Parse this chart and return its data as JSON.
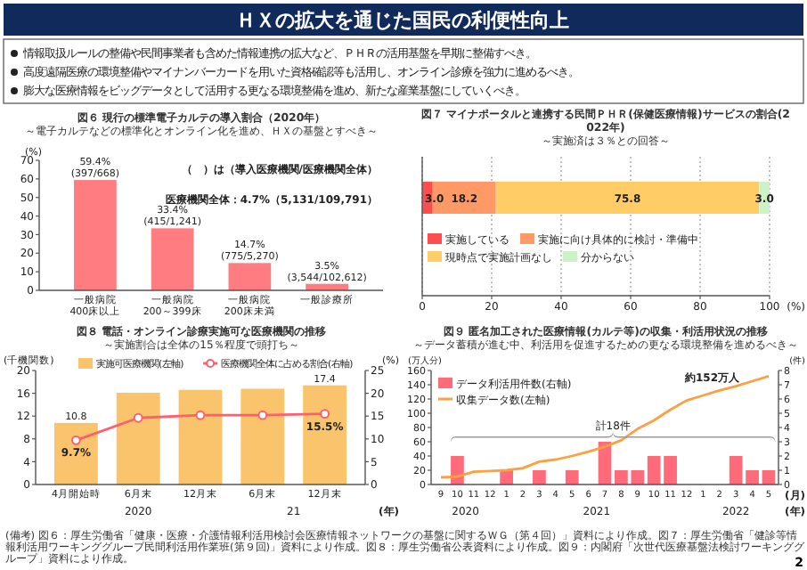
{
  "chart_data": [
    {
      "type": "other",
      "title": "ＨＸの拡大を通じた国民の利便性向上",
      "annotations": [
        "情報取扱ルールの整備や民間事業者も含めた情報連携の拡大など、ＰＨＲの活用基盤を早期に整備すべき。",
        "高度遠隔医療の環境整備やマイナンバーカードを用いた資格確認等も活用し、オンライン診療を強力に進めるべき。",
        "膨大な医療情報をビッグデータとして活用する更なる環境整備を進め、新たな産業基盤にしていくべき。",
        "(備考) 図６：厚生労働省「健康・医療・介護情報利活用検討会医療情報ネットワークの基盤に関するＷＧ（第４回）」資料により作成。図７：厚生労働省「健診等情報利活用ワーキンググループ民間利活用作業班(第９回)」資料により作成。図８：厚生労働省公表資料により作成。図９：内閣府「次世代医療基盤法検討ワーキンググループ」資料により作成。",
        "2"
      ]
    },
    {
      "type": "bar",
      "title": "図６ 現行の標準電子カルテの導入割合（2020年）",
      "subtitle": "～電子カルテなどの標準化とオンライン化を進め、ＨＸの基盤とすべき～",
      "ylabel": "(%)",
      "categories": [
        "一般病院 400床以上",
        "一般病院 200～399床",
        "一般病院 200床未満",
        "一般診療所"
      ],
      "ylim": [
        0,
        70
      ],
      "yticks": [
        0,
        10,
        20,
        30,
        40,
        50,
        60,
        70
      ],
      "annotations": [
        "（　）は（導入医療機関/医療機関全体）",
        "医療機関全体：4.7%（5,131/109,791）"
      ],
      "series": [
        {
          "color": "#ff7c80",
          "values": [
            59.4,
            33.4,
            14.7,
            3.5
          ],
          "value_labels": [
            "59.4%\n(397/668)",
            "33.4%\n(415/1,241)",
            "14.7%\n(775/5,270)",
            "3.5%\n(3,544/102,612)"
          ]
        }
      ]
    },
    {
      "type": "bar",
      "orientation": "horizontal",
      "stacked": true,
      "title": "図７ マイナポータルと連携する民間ＰＨＲ(保健医療情報)サービスの割合(2022年)",
      "subtitle": "～実施済は３％との回答～",
      "xlabel": "(%)",
      "categories": [
        null
      ],
      "xlim": [
        0,
        100
      ],
      "xticks": [
        0,
        20,
        40,
        60,
        80,
        100
      ],
      "grid": "x",
      "legend": "bottom",
      "series": [
        {
          "name": "実施している",
          "color": "#ff4d4d",
          "values": [
            3.0
          ],
          "value_labels": [
            "3.0"
          ]
        },
        {
          "name": "実施に向け具体的に検討・準備中",
          "color": "#ff9a66",
          "values": [
            18.2
          ],
          "value_labels": [
            "18.2"
          ]
        },
        {
          "name": "現時点で実施計画なし",
          "color": "#ffcc66",
          "values": [
            75.8
          ],
          "value_labels": [
            "75.8"
          ]
        },
        {
          "name": "分からない",
          "color": "#ccf2c8",
          "values": [
            3.0
          ],
          "value_labels": [
            "3.0"
          ]
        }
      ]
    },
    {
      "type": "bar",
      "title": "図８ 電話・オンライン診療実施可な医療機関の推移",
      "subtitle": "～実施割合は全体の15％程度で頭打ち～",
      "ylabel": "(千機関数)",
      "y2label": "(%)",
      "categories": [
        "4月開始時",
        "6月末",
        "12月末",
        "6月末",
        "12月末"
      ],
      "ylim": [
        0,
        20
      ],
      "yticks": [
        0,
        4,
        8,
        12,
        16,
        20
      ],
      "y2lim": [
        0,
        25
      ],
      "y2ticks": [
        0,
        5,
        10,
        15,
        20,
        25
      ],
      "legend": "top",
      "marker": "circle",
      "annotations": [
        "2020",
        "21",
        "(年)"
      ],
      "series": [
        {
          "name": "実施可医療機関(左軸)",
          "color": "#f9c46b",
          "values": [
            10.8,
            16.1,
            16.6,
            16.8,
            17.4
          ],
          "value_labels": [
            "10.8",
            null,
            null,
            null,
            "17.4"
          ]
        },
        {
          "name": "医療機関全体に占める割合(右軸)",
          "type": "line",
          "axis": "y2",
          "color": "#ff5f6d",
          "values": [
            9.7,
            14.6,
            15.2,
            15.2,
            15.5
          ],
          "value_labels": [
            "9.7%",
            null,
            null,
            null,
            "15.5%"
          ]
        }
      ]
    },
    {
      "type": "bar",
      "title": "図９ 匿名加工された医療情報(カルテ等)の収集・利活用状況の推移",
      "subtitle": "～データ蓄積が進む中、利活用を促進するための更なる環境整備を進めるべき～",
      "ylabel": "(万人分)",
      "y2label": "(件)",
      "categories": [
        "9",
        "10",
        "11",
        "12",
        "1",
        "2",
        "3",
        "4",
        "5",
        "6",
        "7",
        "8",
        "9",
        "10",
        "11",
        "12",
        "1",
        "2",
        "3",
        "4",
        "5"
      ],
      "ylim": [
        0,
        160
      ],
      "yticks": [
        0,
        20,
        40,
        60,
        80,
        100,
        120,
        140,
        160
      ],
      "y2lim": [
        0,
        8
      ],
      "y2ticks": [
        0,
        1,
        2,
        3,
        4,
        5,
        6,
        7,
        8
      ],
      "legend": "top left",
      "annotations": [
        "約152万人",
        "計18件",
        "2020",
        "2021",
        "2022",
        "(月)",
        "(年)"
      ],
      "series": [
        {
          "name": "データ利活用件数(右軸)",
          "axis": "y2",
          "color": "#ff6b7a",
          "values": [
            0,
            2,
            0,
            0,
            1,
            0,
            1,
            0,
            1,
            0,
            3,
            1,
            1,
            2,
            2,
            0,
            0,
            0,
            2,
            1,
            1
          ]
        },
        {
          "name": "収集データ数(左軸)",
          "type": "line",
          "color": "#ffa040",
          "values": [
            10,
            11,
            18,
            19,
            20,
            23,
            32,
            35,
            40,
            46,
            53,
            62,
            78,
            90,
            105,
            118,
            125,
            132,
            138,
            145,
            152
          ]
        }
      ]
    }
  ]
}
